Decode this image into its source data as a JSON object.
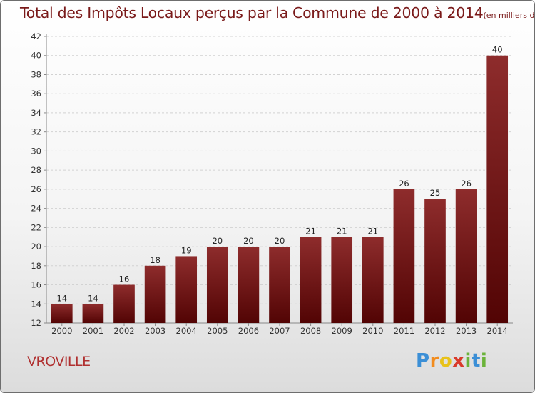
{
  "chart_data": {
    "type": "bar",
    "title": "Total des Impôts Locaux perçus par la Commune de 2000 à 2014",
    "unit_label": "(en milliers d'€)",
    "categories": [
      "2000",
      "2001",
      "2002",
      "2003",
      "2004",
      "2005",
      "2006",
      "2007",
      "2008",
      "2009",
      "2010",
      "2011",
      "2012",
      "2013",
      "2014"
    ],
    "values": [
      14,
      14,
      16,
      18,
      19,
      20,
      20,
      20,
      21,
      21,
      21,
      26,
      25,
      26,
      40
    ],
    "ylim": [
      12,
      42
    ],
    "yticks": [
      12,
      14,
      16,
      18,
      20,
      22,
      24,
      26,
      28,
      30,
      32,
      34,
      36,
      38,
      40,
      42
    ],
    "xlabel": "",
    "ylabel": "",
    "bar_color": "#6b0e0e"
  },
  "commune": "VROVILLE",
  "logo": {
    "letters": [
      "P",
      "r",
      "o",
      "x",
      "i",
      "t",
      "i"
    ],
    "colors": [
      "#3b8fd6",
      "#f28c1e",
      "#e8c21a",
      "#d93a2b",
      "#6bb33a",
      "#3b8fd6",
      "#6bb33a"
    ]
  }
}
